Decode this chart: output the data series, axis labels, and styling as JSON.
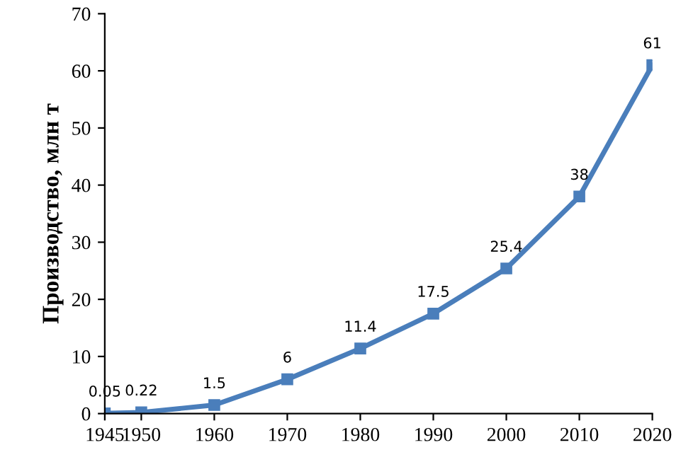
{
  "chart_data": {
    "type": "line",
    "ylabel": "Производство, млн т",
    "x": [
      1945,
      1950,
      1960,
      1970,
      1980,
      1990,
      2000,
      2010,
      2020
    ],
    "series": [
      {
        "color": "#4a7ebb",
        "values": [
          0.05,
          0.22,
          1.5,
          6,
          11.4,
          17.5,
          25.4,
          38,
          61
        ]
      }
    ],
    "xlim": [
      1945,
      2020
    ],
    "xticks": [
      1945,
      1950,
      1960,
      1970,
      1980,
      1990,
      2000,
      2010,
      2020
    ],
    "ylim": [
      0,
      70
    ],
    "yticks": [
      0,
      10,
      20,
      30,
      40,
      50,
      60,
      70
    ],
    "data_labels": true,
    "grid": false,
    "legend": false,
    "marker": "square",
    "line_style": "solid"
  }
}
